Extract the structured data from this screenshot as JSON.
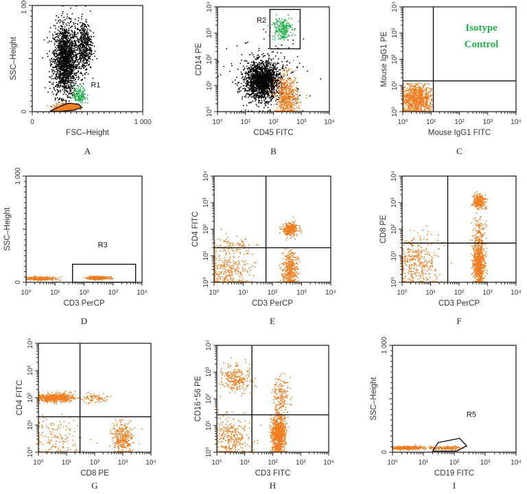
{
  "colors": {
    "black_events": "#000000",
    "orange_events": "#f07d1f",
    "green_events": "#22b14c",
    "isotype_text": "#22b14c"
  },
  "chart_data": [
    {
      "type": "scatter",
      "panel_label": "A",
      "xlabel": "FSC–Height",
      "ylabel": "SSC–Height",
      "xscale": "linear",
      "yscale": "linear",
      "xlim": [
        0,
        1000
      ],
      "ylim": [
        0,
        1000
      ],
      "xticks": [
        {
          "v": 0,
          "label": "0"
        },
        {
          "v": 1000,
          "label": "1 000"
        }
      ],
      "yticks": [
        {
          "v": 0,
          "label": "0"
        },
        {
          "v": 1000,
          "label": "1 000"
        }
      ],
      "gates": [
        {
          "name": "R1",
          "type": "polygon",
          "fill": "orange",
          "points": [
            [
              160,
              5
            ],
            [
              250,
              50
            ],
            [
              330,
              80
            ],
            [
              420,
              70
            ],
            [
              450,
              40
            ],
            [
              380,
              15
            ],
            [
              250,
              2
            ]
          ],
          "label_at": [
            530,
            230
          ]
        }
      ],
      "quadrants": null,
      "clusters": [
        {
          "color": "black",
          "center": [
            300,
            480
          ],
          "sd": [
            55,
            170
          ],
          "n": 1800
        },
        {
          "color": "black",
          "center": [
            470,
            620
          ],
          "sd": [
            35,
            120
          ],
          "n": 500
        },
        {
          "color": "green",
          "center": [
            430,
            150
          ],
          "sd": [
            30,
            40
          ],
          "n": 150
        },
        {
          "color": "orange",
          "center": [
            300,
            40
          ],
          "sd": [
            55,
            18
          ],
          "n": 250
        }
      ]
    },
    {
      "type": "scatter",
      "panel_label": "B",
      "xlabel": "CD45 FITC",
      "ylabel": "CD14 PE",
      "xscale": "log",
      "yscale": "log",
      "xlim": [
        1,
        10000
      ],
      "ylim": [
        1,
        10000
      ],
      "xticks": [
        {
          "v": 1,
          "label": "10⁰"
        },
        {
          "v": 10,
          "label": "10¹"
        },
        {
          "v": 100,
          "label": "10²"
        },
        {
          "v": 1000,
          "label": "10³"
        },
        {
          "v": 10000,
          "label": "10⁴"
        }
      ],
      "yticks": [
        {
          "v": 1,
          "label": "10⁰"
        },
        {
          "v": 10,
          "label": "10¹"
        },
        {
          "v": 100,
          "label": "10²"
        },
        {
          "v": 1000,
          "label": "10³"
        },
        {
          "v": 10000,
          "label": "10⁴"
        }
      ],
      "gates": [
        {
          "name": "R2",
          "type": "rect",
          "points": [
            [
              75,
              250
            ],
            [
              900,
              8000
            ]
          ],
          "label_at": [
            25,
            2500
          ]
        }
      ],
      "quadrants": null,
      "clusters": [
        {
          "color": "black",
          "center": [
            40,
            15
          ],
          "sd": [
            0.3,
            0.35
          ],
          "n": 1800
        },
        {
          "color": "black",
          "center": [
            60,
            20
          ],
          "sd": [
            0.7,
            0.7
          ],
          "n": 200
        },
        {
          "color": "orange",
          "center": [
            300,
            3
          ],
          "sd": [
            0.2,
            0.45
          ],
          "n": 600
        },
        {
          "color": "green",
          "center": [
            200,
            1500
          ],
          "sd": [
            0.18,
            0.22
          ],
          "n": 220
        }
      ]
    },
    {
      "type": "scatter",
      "panel_label": "C",
      "xlabel": "Mouse IgG1 FITC",
      "ylabel": "Mouse IgG1 PE",
      "xscale": "log",
      "yscale": "log",
      "xlim": [
        1,
        10000
      ],
      "ylim": [
        1,
        10000
      ],
      "xticks": [
        {
          "v": 1,
          "label": "10⁰"
        },
        {
          "v": 10,
          "label": "10¹"
        },
        {
          "v": 100,
          "label": "10²"
        },
        {
          "v": 1000,
          "label": "10³"
        },
        {
          "v": 10000,
          "label": "10⁴"
        }
      ],
      "yticks": [
        {
          "v": 1,
          "label": "10⁰"
        },
        {
          "v": 10,
          "label": "10¹"
        },
        {
          "v": 100,
          "label": "10²"
        },
        {
          "v": 1000,
          "label": "10³"
        },
        {
          "v": 10000,
          "label": "10⁴"
        }
      ],
      "gates": [],
      "quadrants": [
        12,
        15
      ],
      "annotation": {
        "lines": [
          "Isotype",
          "Control"
        ],
        "color": "green",
        "at": [
          600,
          1200
        ]
      },
      "clusters": [
        {
          "color": "orange",
          "center": [
            3,
            3
          ],
          "sd": [
            0.3,
            0.3
          ],
          "n": 900,
          "clip": [
            11,
            13
          ]
        }
      ]
    },
    {
      "type": "scatter",
      "panel_label": "D",
      "xlabel": "CD3 PerCP",
      "ylabel": "SSC–Height",
      "xscale": "log",
      "yscale": "linear",
      "xlim": [
        1,
        10000
      ],
      "ylim": [
        0,
        1000
      ],
      "xticks": [
        {
          "v": 1,
          "label": "10⁰"
        },
        {
          "v": 10,
          "label": "10¹"
        },
        {
          "v": 100,
          "label": "10²"
        },
        {
          "v": 1000,
          "label": "10³"
        },
        {
          "v": 10000,
          "label": "10⁴"
        }
      ],
      "yticks": [
        {
          "v": 0,
          "label": "0"
        },
        {
          "v": 1000,
          "label": "1 000"
        }
      ],
      "gates": [
        {
          "name": "R3",
          "type": "rect",
          "points": [
            [
              40,
              0
            ],
            [
              6000,
              170
            ]
          ],
          "label_at": [
            300,
            330
          ]
        }
      ],
      "quadrants": null,
      "clusters": [
        {
          "color": "orange",
          "center": [
            3,
            35
          ],
          "sd": [
            0.3,
            8
          ],
          "n": 250
        },
        {
          "color": "orange",
          "center": [
            300,
            40
          ],
          "sd": [
            0.18,
            7
          ],
          "n": 400
        }
      ]
    },
    {
      "type": "scatter",
      "panel_label": "E",
      "xlabel": "CD3 PerCP",
      "ylabel": "CD4 FITC",
      "xscale": "log",
      "yscale": "log",
      "xlim": [
        1,
        10000
      ],
      "ylim": [
        1,
        10000
      ],
      "xticks": [
        {
          "v": 1,
          "label": "10⁰"
        },
        {
          "v": 10,
          "label": "10¹"
        },
        {
          "v": 100,
          "label": "10²"
        },
        {
          "v": 1000,
          "label": "10³"
        },
        {
          "v": 10000,
          "label": "10⁴"
        }
      ],
      "yticks": [
        {
          "v": 1,
          "label": "10⁰"
        },
        {
          "v": 10,
          "label": "10¹"
        },
        {
          "v": 100,
          "label": "10²"
        },
        {
          "v": 1000,
          "label": "10³"
        },
        {
          "v": 10000,
          "label": "10⁴"
        }
      ],
      "gates": [],
      "quadrants": [
        60,
        20
      ],
      "clusters": [
        {
          "color": "orange",
          "center": [
            400,
            100
          ],
          "sd": [
            0.13,
            0.12
          ],
          "n": 300
        },
        {
          "color": "orange",
          "center": [
            400,
            3
          ],
          "sd": [
            0.13,
            0.35
          ],
          "n": 400
        },
        {
          "color": "orange",
          "center": [
            3,
            3
          ],
          "sd": [
            0.4,
            0.4
          ],
          "n": 300
        },
        {
          "color": "orange",
          "center": [
            5,
            25
          ],
          "sd": [
            0.4,
            0.15
          ],
          "n": 80
        }
      ]
    },
    {
      "type": "scatter",
      "panel_label": "F",
      "xlabel": "CD3 PerCP",
      "ylabel": "CD8 PE",
      "xscale": "log",
      "yscale": "log",
      "xlim": [
        1,
        10000
      ],
      "ylim": [
        1,
        10000
      ],
      "xticks": [
        {
          "v": 1,
          "label": "10⁰"
        },
        {
          "v": 10,
          "label": "10¹"
        },
        {
          "v": 100,
          "label": "10²"
        },
        {
          "v": 1000,
          "label": "10³"
        },
        {
          "v": 10000,
          "label": "10⁴"
        }
      ],
      "yticks": [
        {
          "v": 1,
          "label": "10⁰"
        },
        {
          "v": 10,
          "label": "10¹"
        },
        {
          "v": 100,
          "label": "10²"
        },
        {
          "v": 1000,
          "label": "10³"
        },
        {
          "v": 10000,
          "label": "10⁴"
        }
      ],
      "gates": [],
      "quadrants": [
        40,
        30
      ],
      "clusters": [
        {
          "color": "orange",
          "center": [
            500,
            1100
          ],
          "sd": [
            0.1,
            0.13
          ],
          "n": 250
        },
        {
          "color": "orange",
          "center": [
            500,
            5
          ],
          "sd": [
            0.1,
            0.45
          ],
          "n": 700
        },
        {
          "color": "orange",
          "center": [
            500,
            80
          ],
          "sd": [
            0.1,
            0.3
          ],
          "n": 100
        },
        {
          "color": "orange",
          "center": [
            3,
            5
          ],
          "sd": [
            0.4,
            0.5
          ],
          "n": 400
        }
      ]
    },
    {
      "type": "scatter",
      "panel_label": "G",
      "xlabel": "CD8 PE",
      "ylabel": "CD4 FITC",
      "xscale": "log",
      "yscale": "log",
      "xlim": [
        1,
        10000
      ],
      "ylim": [
        1,
        10000
      ],
      "xticks": [
        {
          "v": 1,
          "label": "10⁰"
        },
        {
          "v": 10,
          "label": "10¹"
        },
        {
          "v": 100,
          "label": "10²"
        },
        {
          "v": 1000,
          "label": "10³"
        },
        {
          "v": 10000,
          "label": "10⁴"
        }
      ],
      "yticks": [
        {
          "v": 1,
          "label": "10⁰"
        },
        {
          "v": 10,
          "label": "10¹"
        },
        {
          "v": 100,
          "label": "10²"
        },
        {
          "v": 1000,
          "label": "10³"
        },
        {
          "v": 10000,
          "label": "10⁴"
        }
      ],
      "gates": [],
      "quadrants": [
        30,
        20
      ],
      "clusters": [
        {
          "color": "orange",
          "center": [
            4,
            100
          ],
          "sd": [
            0.35,
            0.08
          ],
          "n": 500
        },
        {
          "color": "orange",
          "center": [
            100,
            100
          ],
          "sd": [
            0.25,
            0.08
          ],
          "n": 80
        },
        {
          "color": "orange",
          "center": [
            1000,
            3
          ],
          "sd": [
            0.18,
            0.3
          ],
          "n": 300
        },
        {
          "color": "orange",
          "center": [
            5,
            3
          ],
          "sd": [
            0.5,
            0.4
          ],
          "n": 150
        }
      ]
    },
    {
      "type": "scatter",
      "panel_label": "H",
      "xlabel": "CD3 FITC",
      "ylabel": "CD16⁺56 PE",
      "xscale": "log",
      "yscale": "log",
      "xlim": [
        1,
        10000
      ],
      "ylim": [
        1,
        10000
      ],
      "xticks": [
        {
          "v": 1,
          "label": "10⁰"
        },
        {
          "v": 10,
          "label": "10¹"
        },
        {
          "v": 100,
          "label": "10²"
        },
        {
          "v": 1000,
          "label": "10³"
        },
        {
          "v": 10000,
          "label": "10⁴"
        }
      ],
      "yticks": [
        {
          "v": 1,
          "label": "10⁰"
        },
        {
          "v": 10,
          "label": "10¹"
        },
        {
          "v": 100,
          "label": "10²"
        },
        {
          "v": 1000,
          "label": "10³"
        },
        {
          "v": 10000,
          "label": "10⁴"
        }
      ],
      "gates": [],
      "quadrants": [
        18,
        25
      ],
      "clusters": [
        {
          "color": "orange",
          "center": [
            5,
            600
          ],
          "sd": [
            0.25,
            0.25
          ],
          "n": 250
        },
        {
          "color": "orange",
          "center": [
            3,
            3
          ],
          "sd": [
            0.35,
            0.4
          ],
          "n": 300
        },
        {
          "color": "orange",
          "center": [
            160,
            5
          ],
          "sd": [
            0.13,
            0.4
          ],
          "n": 900
        },
        {
          "color": "orange",
          "center": [
            200,
            150
          ],
          "sd": [
            0.13,
            0.3
          ],
          "n": 150
        }
      ]
    },
    {
      "type": "scatter",
      "panel_label": "I",
      "xlabel": "CD19 FITC",
      "ylabel": "SSC–Height",
      "xscale": "log",
      "yscale": "linear",
      "xlim": [
        1,
        10000
      ],
      "ylim": [
        0,
        1000
      ],
      "xticks": [
        {
          "v": 1,
          "label": "10⁰"
        },
        {
          "v": 10,
          "label": "10¹"
        },
        {
          "v": 100,
          "label": "10²"
        },
        {
          "v": 1000,
          "label": "10³"
        },
        {
          "v": 10000,
          "label": "10⁴"
        }
      ],
      "yticks": [
        {
          "v": 0,
          "label": "0"
        },
        {
          "v": 1000,
          "label": "1 000"
        }
      ],
      "gates": [
        {
          "name": "R5",
          "type": "polygon",
          "points": [
            [
              20,
              10
            ],
            [
              30,
              90
            ],
            [
              150,
              130
            ],
            [
              250,
              60
            ],
            [
              120,
              10
            ]
          ],
          "label_at": [
            250,
            330
          ]
        }
      ],
      "quadrants": null,
      "clusters": [
        {
          "color": "orange",
          "center": [
            3,
            40
          ],
          "sd": [
            0.3,
            8
          ],
          "n": 350
        },
        {
          "color": "orange",
          "center": [
            60,
            40
          ],
          "sd": [
            0.25,
            9
          ],
          "n": 130
        }
      ]
    }
  ]
}
